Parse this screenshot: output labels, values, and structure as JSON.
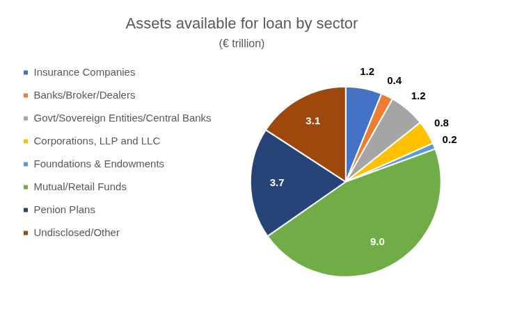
{
  "chart_data": {
    "type": "pie",
    "title": "Assets available for loan by sector",
    "subtitle": "(€ trillion)",
    "categories": [
      "Insurance Companies",
      "Banks/Broker/Dealers",
      "Govt/Sovereign Entities/Central Banks",
      "Corporations, LLP and LLC",
      "Foundations & Endowments",
      "Mutual/Retail Funds",
      "Penion Plans",
      "Undisclosed/Other"
    ],
    "values": [
      1.2,
      0.4,
      1.2,
      0.8,
      0.2,
      9.0,
      3.7,
      3.1
    ],
    "value_labels": [
      "1.2",
      "0.4",
      "1.2",
      "0.8",
      "0.2",
      "9.0",
      "3.7",
      "3.1"
    ],
    "colors": [
      "#4472c4",
      "#ed7d31",
      "#a5a5a5",
      "#ffc000",
      "#5b9bd5",
      "#70ad47",
      "#264478",
      "#9e480e"
    ],
    "legend": "left",
    "data_labels": true
  }
}
